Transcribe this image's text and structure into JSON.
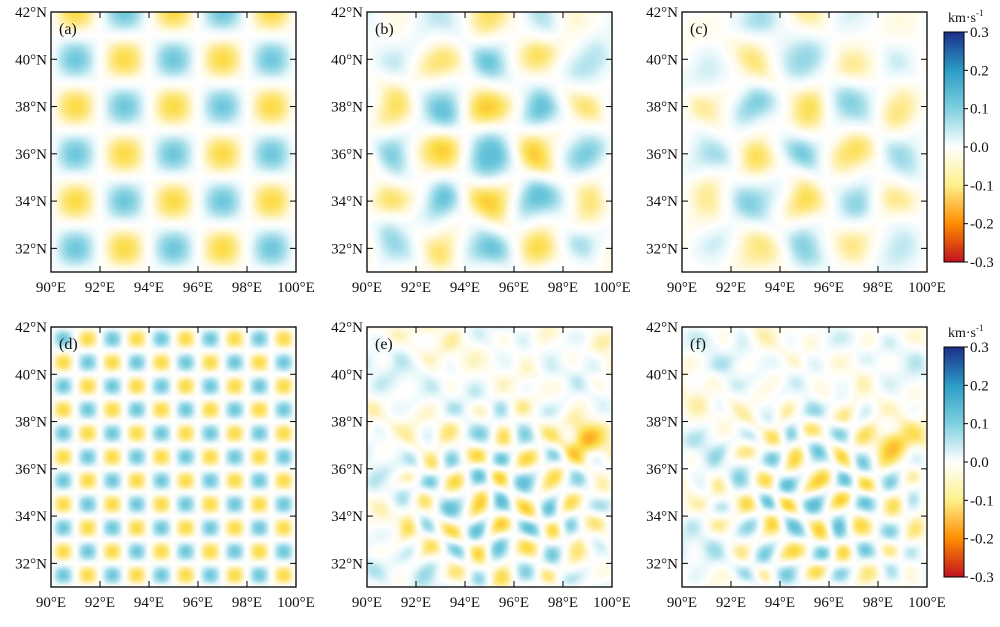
{
  "chart_data": [
    {
      "type": "heatmap",
      "panel_label": "(a)",
      "pattern": "checkerboard",
      "cell_size_deg": 2,
      "amplitude": 0.1,
      "x_ticks": [
        "90°E",
        "92°E",
        "94°E",
        "96°E",
        "98°E",
        "100°E"
      ],
      "y_ticks": [
        "32°N",
        "34°N",
        "36°N",
        "38°N",
        "40°N",
        "42°N"
      ],
      "xlim": [
        90,
        100
      ],
      "ylim": [
        31,
        42
      ]
    },
    {
      "type": "heatmap",
      "panel_label": "(b)",
      "pattern": "recovered_checkerboard",
      "cell_size_deg": 2,
      "amplitude": 0.1,
      "x_ticks": [
        "90°E",
        "92°E",
        "94°E",
        "96°E",
        "98°E",
        "100°E"
      ],
      "y_ticks": [
        "32°N",
        "34°N",
        "36°N",
        "38°N",
        "40°N",
        "42°N"
      ],
      "xlim": [
        90,
        100
      ],
      "ylim": [
        31,
        42
      ]
    },
    {
      "type": "heatmap",
      "panel_label": "(c)",
      "pattern": "recovered_checkerboard",
      "cell_size_deg": 2,
      "amplitude": 0.08,
      "x_ticks": [
        "90°E",
        "92°E",
        "94°E",
        "96°E",
        "98°E",
        "100°E"
      ],
      "y_ticks": [
        "32°N",
        "34°N",
        "36°N",
        "38°N",
        "40°N",
        "42°N"
      ],
      "xlim": [
        90,
        100
      ],
      "ylim": [
        31,
        42
      ]
    },
    {
      "type": "heatmap",
      "panel_label": "(d)",
      "pattern": "checkerboard",
      "cell_size_deg": 1,
      "amplitude": 0.1,
      "x_ticks": [
        "90°E",
        "92°E",
        "94°E",
        "96°E",
        "98°E",
        "100°E"
      ],
      "y_ticks": [
        "32°N",
        "34°N",
        "36°N",
        "38°N",
        "40°N",
        "42°N"
      ],
      "xlim": [
        90,
        100
      ],
      "ylim": [
        31,
        42
      ]
    },
    {
      "type": "heatmap",
      "panel_label": "(e)",
      "pattern": "recovered_checkerboard",
      "cell_size_deg": 1,
      "amplitude": 0.1,
      "x_ticks": [
        "90°E",
        "92°E",
        "94°E",
        "96°E",
        "98°E",
        "100°E"
      ],
      "y_ticks": [
        "32°N",
        "34°N",
        "36°N",
        "38°N",
        "40°N",
        "42°N"
      ],
      "xlim": [
        90,
        100
      ],
      "ylim": [
        31,
        42
      ]
    },
    {
      "type": "heatmap",
      "panel_label": "(f)",
      "pattern": "recovered_checkerboard",
      "cell_size_deg": 1,
      "amplitude": 0.1,
      "x_ticks": [
        "90°E",
        "92°E",
        "94°E",
        "96°E",
        "98°E",
        "100°E"
      ],
      "y_ticks": [
        "32°N",
        "34°N",
        "36°N",
        "38°N",
        "40°N",
        "42°N"
      ],
      "xlim": [
        90,
        100
      ],
      "ylim": [
        31,
        42
      ]
    }
  ],
  "colorbars": [
    {
      "unit_base": "km·s",
      "unit_sup": "-1",
      "range": [
        -0.3,
        0.3
      ],
      "tick_labels": [
        "0.3",
        "0.2",
        "0.1",
        "0.0",
        "-0.1",
        "-0.2",
        "-0.3"
      ],
      "colors": [
        "#c1121f",
        "#ff8c00",
        "#fdf08a",
        "#ffffff",
        "#7fd0e0",
        "#2c9cc5",
        "#1b2f8a"
      ]
    },
    {
      "unit_base": "km·s",
      "unit_sup": "-1",
      "range": [
        -0.3,
        0.3
      ],
      "tick_labels": [
        "0.3",
        "0.2",
        "0.1",
        "0.0",
        "-0.1",
        "-0.2",
        "-0.3"
      ],
      "colors": [
        "#c1121f",
        "#ff8c00",
        "#fdf08a",
        "#ffffff",
        "#7fd0e0",
        "#2c9cc5",
        "#1b2f8a"
      ]
    }
  ]
}
